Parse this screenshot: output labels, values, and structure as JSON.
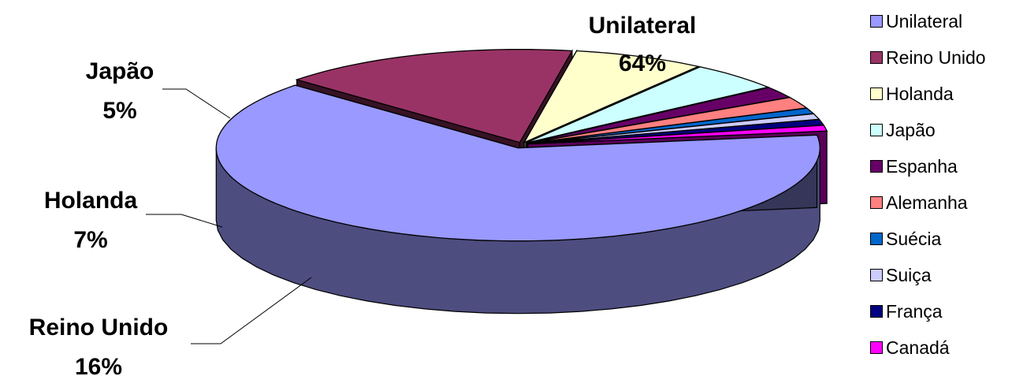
{
  "chart_data": {
    "type": "pie",
    "style": "3d-exploded",
    "unit": "%",
    "categories": [
      "Unilateral",
      "Reino Unido",
      "Holanda",
      "Japão",
      "Espanha",
      "Alemanha",
      "Suécia",
      "Suiça",
      "França",
      "Canadá"
    ],
    "values": [
      64,
      16,
      7,
      5,
      2,
      2,
      1,
      1,
      1,
      1
    ],
    "colors": [
      "#9999ff",
      "#993366",
      "#ffffcc",
      "#ccffff",
      "#660066",
      "#ff8080",
      "#0066cc",
      "#ccccff",
      "#000080",
      "#ff00ff"
    ],
    "data_labels": [
      {
        "category": "Unilateral",
        "name": "Unilateral",
        "value": "64%"
      },
      {
        "category": "Japão",
        "name": "Japão",
        "value": "5%"
      },
      {
        "category": "Holanda",
        "name": "Holanda",
        "value": "7%"
      },
      {
        "category": "Reino Unido",
        "name": "Reino Unido",
        "value": "16%"
      }
    ],
    "legend_position": "right"
  },
  "legend": {
    "items": [
      {
        "label": "Unilateral",
        "color": "#9999ff"
      },
      {
        "label": "Reino Unido",
        "color": "#993366"
      },
      {
        "label": "Holanda",
        "color": "#ffffcc"
      },
      {
        "label": "Japão",
        "color": "#ccffff"
      },
      {
        "label": "Espanha",
        "color": "#660066"
      },
      {
        "label": "Alemanha",
        "color": "#ff8080"
      },
      {
        "label": "Suécia",
        "color": "#0066cc"
      },
      {
        "label": "Suiça",
        "color": "#ccccff"
      },
      {
        "label": "França",
        "color": "#000080"
      },
      {
        "label": "Canadá",
        "color": "#ff00ff"
      }
    ]
  }
}
